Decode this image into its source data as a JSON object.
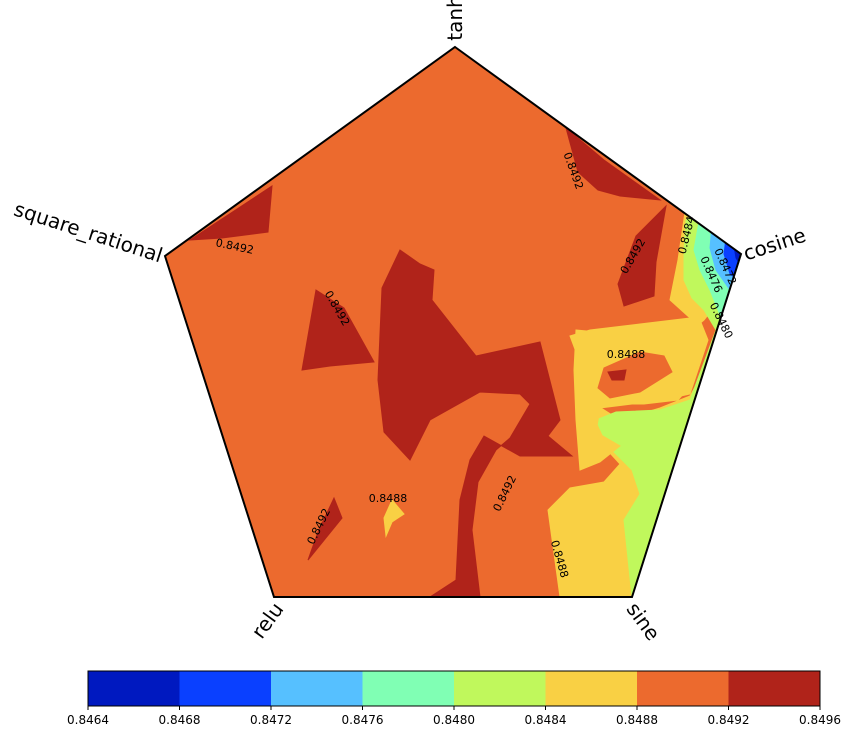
{
  "chart_data": {
    "type": "filled-contour",
    "title": "",
    "vertices": [
      "tanh",
      "cosine",
      "sine",
      "relu",
      "square_rational"
    ],
    "colorbar": {
      "levels": [
        0.8464,
        0.8468,
        0.8472,
        0.8476,
        0.848,
        0.8484,
        0.8488,
        0.8492,
        0.8496
      ],
      "tick_labels": [
        "0.8464",
        "0.8468",
        "0.8472",
        "0.8476",
        "0.8480",
        "0.8484",
        "0.8488",
        "0.8492",
        "0.8496"
      ],
      "colors": [
        "#0019c0",
        "#0a40ff",
        "#56c0ff",
        "#80ffb4",
        "#c0f85c",
        "#f9d044",
        "#ec6a2e",
        "#b0231a"
      ],
      "orientation": "horizontal",
      "placement": "bottom"
    },
    "contour_labels": [
      {
        "text": "0.8492",
        "level": 0.8492
      },
      {
        "text": "0.8492",
        "level": 0.8492
      },
      {
        "text": "0.8492",
        "level": 0.8492
      },
      {
        "text": "0.8492",
        "level": 0.8492
      },
      {
        "text": "0.8492",
        "level": 0.8492
      },
      {
        "text": "0.8492",
        "level": 0.8492
      },
      {
        "text": "0.8488",
        "level": 0.8488
      },
      {
        "text": "0.8488",
        "level": 0.8488
      },
      {
        "text": "0.8488",
        "level": 0.8488
      },
      {
        "text": "0.8484",
        "level": 0.8484
      },
      {
        "text": "0.8480",
        "level": 0.848
      },
      {
        "text": "0.8476",
        "level": 0.8476
      },
      {
        "text": "0.8472",
        "level": 0.8472
      }
    ],
    "regions": [
      {
        "level_band": [
          0.8492,
          0.8496
        ],
        "location": "near tanh-cosine edge"
      },
      {
        "level_band": [
          0.8492,
          0.8496
        ],
        "location": "near square_rational"
      },
      {
        "level_band": [
          0.8492,
          0.8496
        ],
        "location": "center"
      },
      {
        "level_band": [
          0.8484,
          0.8488
        ],
        "location": "near sine"
      },
      {
        "level_band": [
          0.848,
          0.8484
        ],
        "location": "between sine and cosine"
      },
      {
        "level_band": [
          0.8464,
          0.848
        ],
        "location": "at cosine vertex"
      }
    ]
  }
}
